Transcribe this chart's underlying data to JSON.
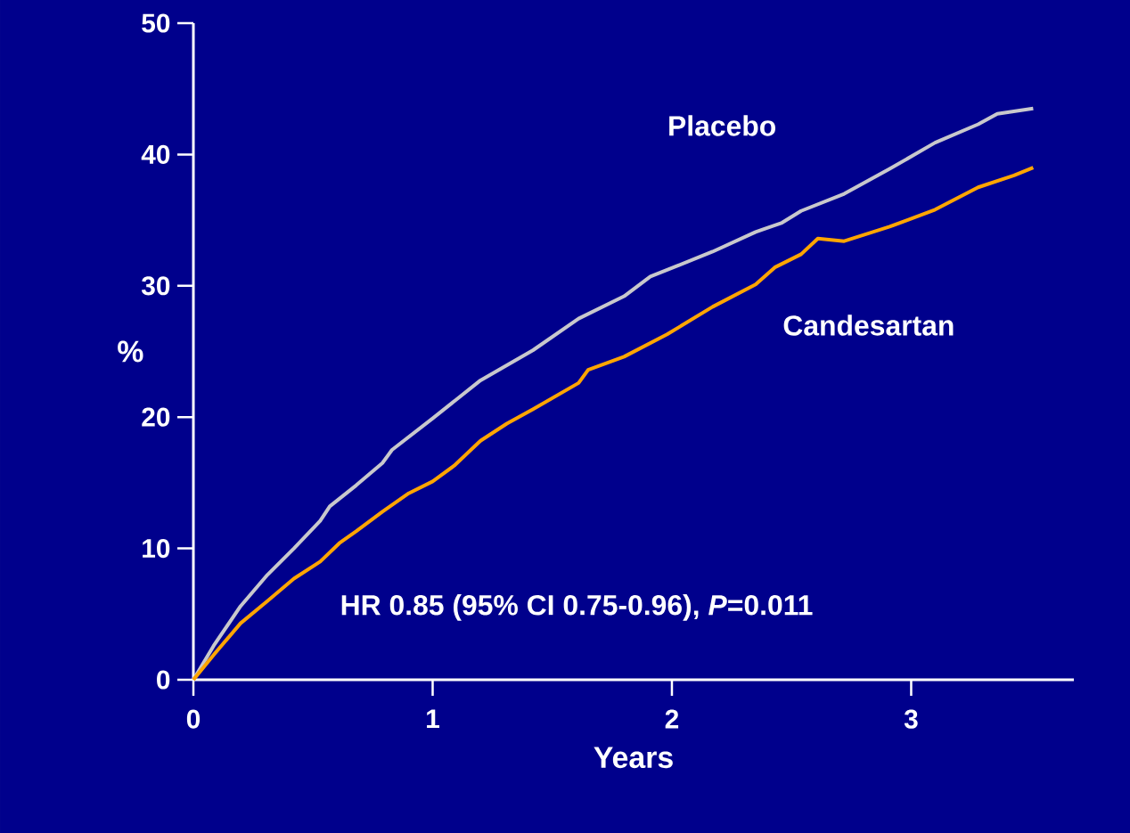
{
  "chart_data": {
    "type": "line",
    "xlabel": "Years",
    "ylabel": "%",
    "xlim": [
      0,
      3.68
    ],
    "ylim": [
      0,
      50
    ],
    "xticks": [
      0,
      1,
      2,
      3
    ],
    "yticks": [
      0,
      10,
      20,
      30,
      40,
      50
    ],
    "grid": false,
    "legend": false,
    "marker": "none",
    "line_style": "solid",
    "annotations": [
      "HR 0.85 (95% CI 0.75-0.96), *P*=0.011"
    ],
    "series": [
      {
        "name": "Placebo",
        "color": "#c8c8cc",
        "x": [
          0,
          0.085,
          0.197,
          0.31,
          0.42,
          0.53,
          0.57,
          0.68,
          0.79,
          0.83,
          1.0,
          1.2,
          1.42,
          1.61,
          1.8,
          1.91,
          2.02,
          2.17,
          2.35,
          2.46,
          2.54,
          2.72,
          2.91,
          3.1,
          3.28,
          3.36,
          3.51
        ],
        "values": [
          0,
          2.6,
          5.6,
          8.0,
          10.0,
          12.1,
          13.2,
          14.8,
          16.5,
          17.5,
          19.9,
          22.8,
          25.1,
          27.5,
          29.2,
          30.7,
          31.5,
          32.6,
          34.1,
          34.8,
          35.7,
          37.0,
          38.9,
          40.9,
          42.3,
          43.1,
          43.5
        ]
      },
      {
        "name": "Candesartan",
        "color": "#ffa500",
        "x": [
          0,
          0.085,
          0.197,
          0.31,
          0.42,
          0.53,
          0.61,
          0.68,
          0.79,
          0.9,
          1.0,
          1.09,
          1.2,
          1.31,
          1.42,
          1.61,
          1.65,
          1.8,
          1.98,
          2.17,
          2.35,
          2.43,
          2.54,
          2.61,
          2.72,
          2.91,
          3.1,
          3.28,
          3.43,
          3.51
        ],
        "values": [
          0,
          1.9,
          4.3,
          6.0,
          7.7,
          9.0,
          10.4,
          11.3,
          12.8,
          14.2,
          15.1,
          16.3,
          18.2,
          19.5,
          20.6,
          22.6,
          23.6,
          24.6,
          26.3,
          28.4,
          30.1,
          31.4,
          32.4,
          33.6,
          33.4,
          34.5,
          35.8,
          37.5,
          38.4,
          39.0
        ]
      }
    ]
  }
}
